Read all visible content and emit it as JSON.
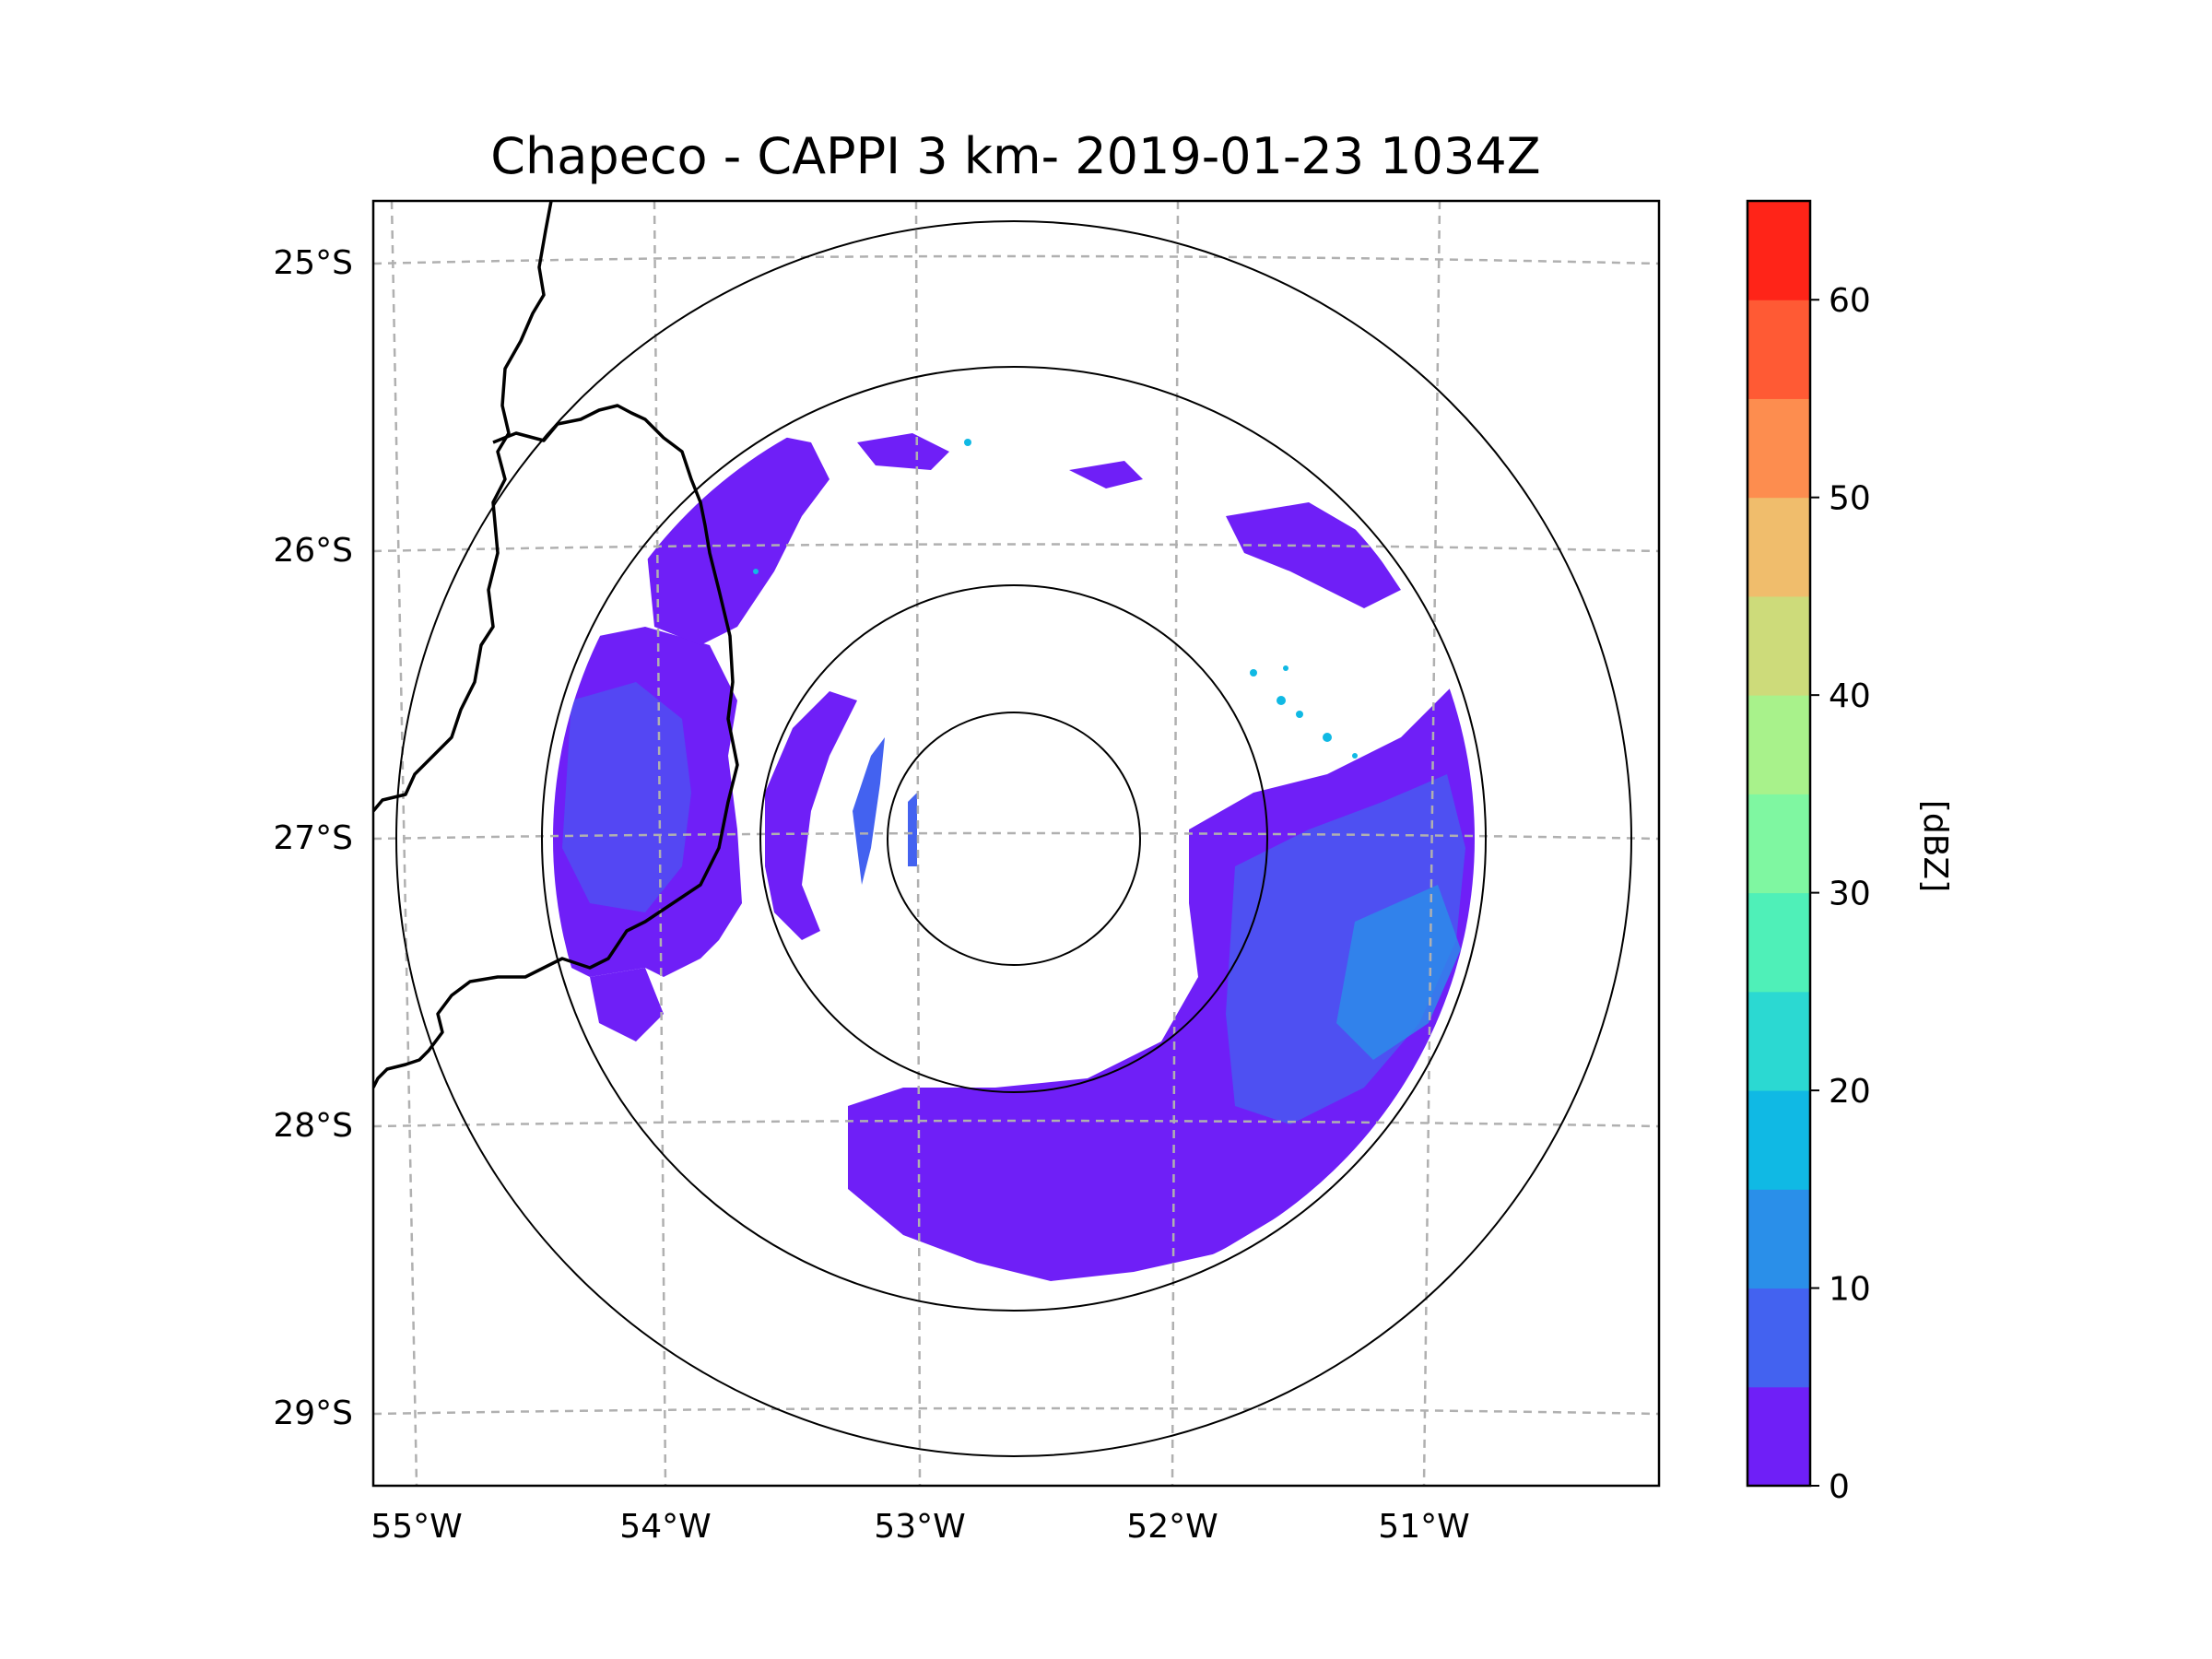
{
  "title": "Chapeco - CAPPI 3 km- 2019-01-23 1034Z",
  "map": {
    "lon_labels": [
      "55°W",
      "54°W",
      "53°W",
      "52°W",
      "51°W"
    ],
    "lat_labels": [
      "25°S",
      "26°S",
      "27°S",
      "28°S",
      "29°S"
    ],
    "radar_site": "Chapeco",
    "product": "CAPPI 3 km",
    "range_rings": 4
  },
  "colorbar": {
    "label": "[dBZ]",
    "ticks": [
      "0",
      "10",
      "20",
      "30",
      "40",
      "50",
      "60"
    ],
    "min": 0,
    "max": 65,
    "step": 5,
    "colors": [
      "#6f1ff7",
      "#4362f0",
      "#2a8fe9",
      "#10b9e4",
      "#2bd9d2",
      "#4ff0b8",
      "#7ff7a1",
      "#a8f28b",
      "#cddb7a",
      "#f0bd6c",
      "#fd8d4f",
      "#ff5a34",
      "#ff2418"
    ]
  },
  "echo_colors": {
    "weak": "#6f1ff7",
    "moderate": "#4362f0",
    "strong": "#2a8fe9",
    "cyan": "#10b9e4"
  }
}
